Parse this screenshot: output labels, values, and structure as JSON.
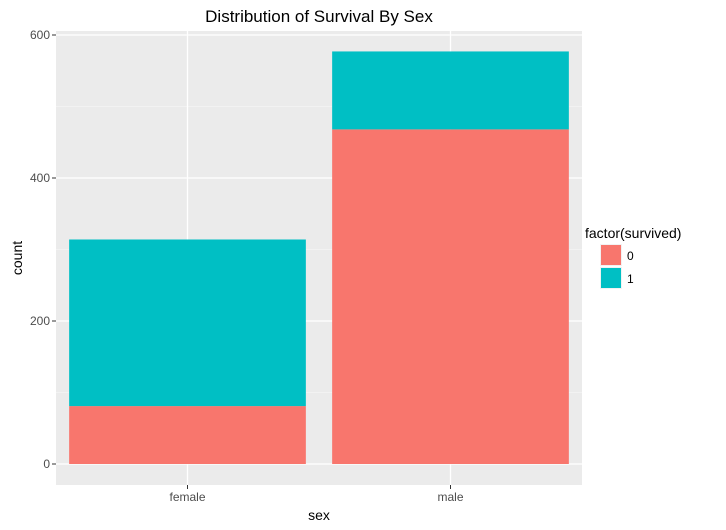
{
  "chart_data": {
    "type": "bar",
    "stacked": true,
    "title": "Distribution of Survival By Sex",
    "xlabel": "sex",
    "ylabel": "count",
    "categories": [
      "female",
      "male"
    ],
    "ylim": [
      -25,
      605
    ],
    "yticks": [
      0,
      200,
      400,
      600
    ],
    "grid": true,
    "legend": {
      "title": "factor(survived)",
      "position": "right"
    },
    "series": [
      {
        "name": "0",
        "color": "#F8766D",
        "values": [
          81,
          468
        ]
      },
      {
        "name": "1",
        "color": "#00BFC4",
        "values": [
          233,
          109
        ]
      }
    ]
  }
}
